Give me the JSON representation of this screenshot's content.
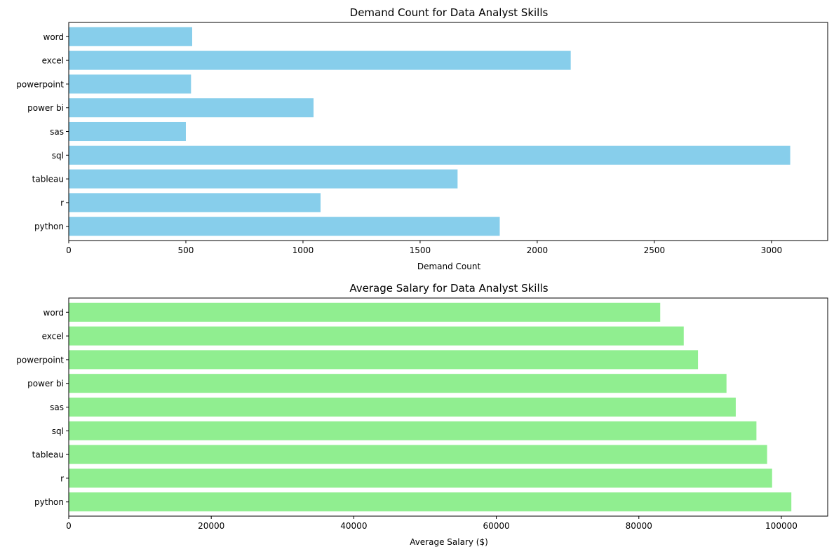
{
  "chart_data": [
    {
      "type": "bar",
      "orientation": "horizontal",
      "title": "Demand Count for Data Analyst Skills",
      "xlabel": "Demand Count",
      "ylabel": "",
      "categories": [
        "python",
        "r",
        "tableau",
        "sql",
        "sas",
        "power bi",
        "powerpoint",
        "excel",
        "word"
      ],
      "values": [
        1840,
        1075,
        1660,
        3080,
        500,
        1045,
        522,
        2143,
        527
      ],
      "xlim": [
        0,
        3240
      ],
      "xticks": [
        0,
        500,
        1000,
        1500,
        2000,
        2500,
        3000
      ],
      "xtick_labels": [
        "0",
        "500",
        "1000",
        "1500",
        "2000",
        "2500",
        "3000"
      ],
      "color": "#87ceeb",
      "grid": false,
      "legend": "none"
    },
    {
      "type": "bar",
      "orientation": "horizontal",
      "title": "Average Salary for Data Analyst Skills",
      "xlabel": "Average Salary ($)",
      "ylabel": "",
      "categories": [
        "python",
        "r",
        "tableau",
        "sql",
        "sas",
        "power bi",
        "powerpoint",
        "excel",
        "word"
      ],
      "values": [
        101400,
        98700,
        98000,
        96500,
        93600,
        92300,
        88300,
        86300,
        83000
      ],
      "xlim": [
        0,
        106500
      ],
      "xticks": [
        0,
        20000,
        40000,
        60000,
        80000,
        100000
      ],
      "xtick_labels": [
        "0",
        "20000",
        "40000",
        "60000",
        "80000",
        "100000"
      ],
      "color": "#90ee90",
      "grid": false,
      "legend": "none"
    }
  ]
}
